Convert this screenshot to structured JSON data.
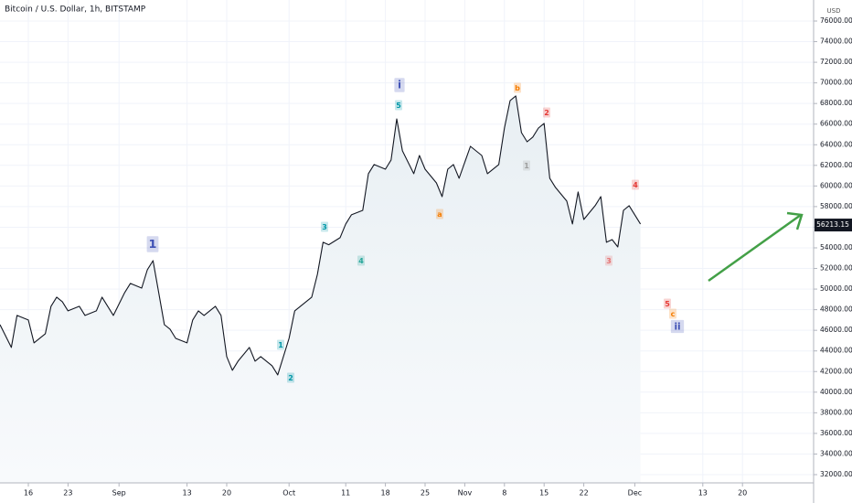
{
  "chart_data": {
    "type": "line",
    "title": "Bitcoin / U.S. Dollar, 1h, BITSTAMP",
    "y_label": "USD",
    "x": [
      "08-11",
      "08-13",
      "08-14",
      "08-16",
      "08-17",
      "08-19",
      "08-20",
      "08-21",
      "08-22",
      "08-23",
      "08-25",
      "08-26",
      "08-28",
      "08-29",
      "08-30",
      "08-31",
      "09-02",
      "09-03",
      "09-05",
      "09-06",
      "09-07",
      "09-08",
      "09-09",
      "09-10",
      "09-11",
      "09-13",
      "09-14",
      "09-15",
      "09-16",
      "09-18",
      "09-19",
      "09-20",
      "09-21",
      "09-22",
      "09-24",
      "09-25",
      "09-26",
      "09-28",
      "09-29",
      "10-01",
      "10-02",
      "10-03",
      "10-05",
      "10-06",
      "10-07",
      "10-08",
      "10-10",
      "10-11",
      "10-12",
      "10-14",
      "10-15",
      "10-16",
      "10-18",
      "10-19",
      "10-20",
      "10-21",
      "10-23",
      "10-24",
      "10-25",
      "10-27",
      "10-28",
      "10-29",
      "10-30",
      "10-31",
      "11-02",
      "11-04",
      "11-05",
      "11-07",
      "11-08",
      "11-09",
      "11-10",
      "11-11",
      "11-12",
      "11-13",
      "11-14",
      "11-15",
      "11-16",
      "11-17",
      "11-19",
      "11-20",
      "11-21",
      "11-22",
      "11-24",
      "11-25",
      "11-26",
      "11-27",
      "11-28",
      "11-29",
      "11-30",
      "12-01",
      "12-02"
    ],
    "series": [
      {
        "color": "#131722",
        "values": [
          46550,
          44340,
          47440,
          47000,
          44780,
          45670,
          48330,
          49220,
          48770,
          47890,
          48330,
          47440,
          47890,
          49220,
          48330,
          47440,
          49660,
          50550,
          50100,
          51880,
          52760,
          49660,
          46550,
          46110,
          45220,
          44780,
          47000,
          47890,
          47440,
          48330,
          47440,
          43450,
          42120,
          43010,
          44340,
          43010,
          43450,
          42560,
          41680,
          45220,
          47890,
          48330,
          49220,
          51430,
          54540,
          54300,
          54980,
          56310,
          57200,
          57640,
          61190,
          62080,
          61630,
          62520,
          66510,
          63410,
          61190,
          62960,
          61630,
          60300,
          58970,
          61630,
          62080,
          60750,
          63850,
          62960,
          61190,
          62080,
          65620,
          68280,
          68730,
          65180,
          64290,
          64740,
          65620,
          66070,
          60750,
          59860,
          58530,
          56310,
          59420,
          56750,
          58090,
          58970,
          54540,
          54800,
          54090,
          57640,
          58090,
          57200,
          56310
        ]
      }
    ],
    "last_price": 56213.15,
    "xlim": [
      "08-11",
      "12-31"
    ],
    "xticks": [
      {
        "value": "08-16",
        "label": "16"
      },
      {
        "value": "08-23",
        "label": "23"
      },
      {
        "value": "09-01",
        "label": "Sep"
      },
      {
        "value": "09-13",
        "label": "13"
      },
      {
        "value": "09-20",
        "label": "20"
      },
      {
        "value": "10-01",
        "label": "Oct"
      },
      {
        "value": "10-11",
        "label": "11"
      },
      {
        "value": "10-18",
        "label": "18"
      },
      {
        "value": "10-25",
        "label": "25"
      },
      {
        "value": "11-01",
        "label": "Nov"
      },
      {
        "value": "11-08",
        "label": "8"
      },
      {
        "value": "11-15",
        "label": "15"
      },
      {
        "value": "11-22",
        "label": "22"
      },
      {
        "value": "12-01",
        "label": "Dec"
      },
      {
        "value": "12-13",
        "label": "13"
      },
      {
        "value": "12-20",
        "label": "20"
      }
    ],
    "ylim": [
      31200,
      78040
    ],
    "yticks": [
      {
        "value": 32000,
        "label": "32000.00"
      },
      {
        "value": 34000,
        "label": "34000.00"
      },
      {
        "value": 36000,
        "label": "36000.00"
      },
      {
        "value": 38000,
        "label": "38000.00"
      },
      {
        "value": 40000,
        "label": "40000.00"
      },
      {
        "value": 42000,
        "label": "42000.00"
      },
      {
        "value": 44000,
        "label": "44000.00"
      },
      {
        "value": 46000,
        "label": "46000.00"
      },
      {
        "value": 48000,
        "label": "48000.00"
      },
      {
        "value": 50000,
        "label": "50000.00"
      },
      {
        "value": 52000,
        "label": "52000.00"
      },
      {
        "value": 54000,
        "label": "54000.00"
      },
      {
        "value": 56000,
        "label": "56000.00"
      },
      {
        "value": 58000,
        "label": "58000.00"
      },
      {
        "value": 60000,
        "label": "60000.00"
      },
      {
        "value": 62000,
        "label": "62000.00"
      },
      {
        "value": 64000,
        "label": "64000.00"
      },
      {
        "value": 66000,
        "label": "66000.00"
      },
      {
        "value": 68000,
        "label": "68000.00"
      },
      {
        "value": 70000,
        "label": "70000.00"
      },
      {
        "value": 72000,
        "label": "72000.00"
      },
      {
        "value": 74000,
        "label": "74000.00"
      },
      {
        "value": 76000,
        "label": "76000.00"
      }
    ],
    "grid": true,
    "annotations": [
      {
        "text": "1",
        "color": "#3f51b5"
      },
      {
        "text": "1",
        "color": "#0097a7"
      },
      {
        "text": "2",
        "color": "#0097a7"
      },
      {
        "text": "3",
        "color": "#0097a7"
      },
      {
        "text": "4",
        "color": "#26a69a"
      },
      {
        "text": "5",
        "color": "#0097a7"
      },
      {
        "text": "i",
        "color": "#3f51b5"
      },
      {
        "text": "a",
        "color": "#f57c00"
      },
      {
        "text": "b",
        "color": "#f57c00"
      },
      {
        "text": "1",
        "color": "#9e9e9e"
      },
      {
        "text": "2",
        "color": "#e53935"
      },
      {
        "text": "3",
        "color": "#e57373"
      },
      {
        "text": "4",
        "color": "#e53935"
      },
      {
        "text": "5",
        "color": "#e53935"
      },
      {
        "text": "c",
        "color": "#f57c00"
      },
      {
        "text": "ii",
        "color": "#3f51b5"
      }
    ],
    "arrow_color": "#43a047"
  }
}
